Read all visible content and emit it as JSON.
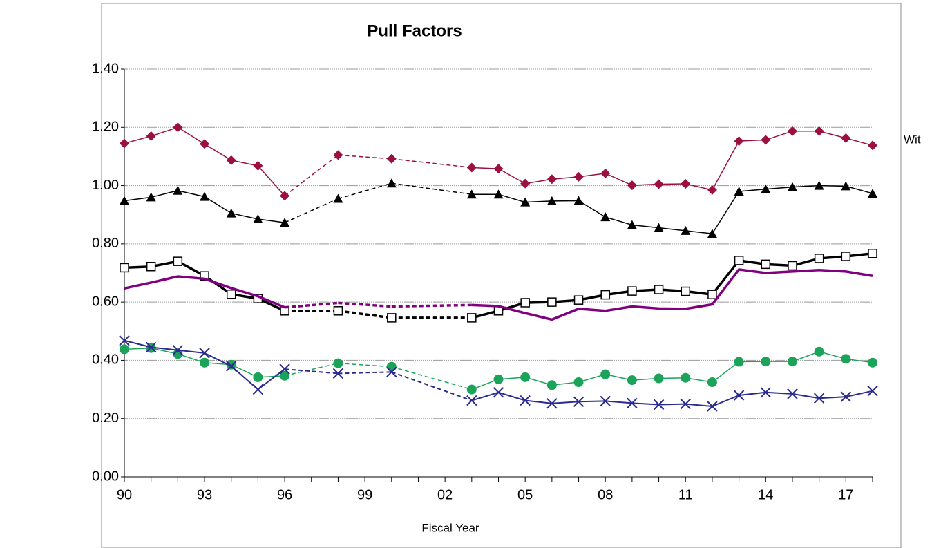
{
  "chart_data": {
    "type": "line",
    "title": "Pull Factors",
    "x_label": "Fiscal Year",
    "annotation": "Wit",
    "categories": [
      "90",
      null,
      null,
      "93",
      null,
      null,
      "96",
      null,
      null,
      "99",
      null,
      null,
      "02",
      null,
      null,
      "05",
      null,
      null,
      "08",
      null,
      null,
      "11",
      null,
      null,
      "14",
      null,
      null,
      "17",
      null
    ],
    "ylim": [
      0,
      1.4
    ],
    "yticks": [
      {
        "value": 0,
        "label": "0.00"
      },
      {
        "value": 0.2,
        "label": "0.20"
      },
      {
        "value": 0.4,
        "label": "0.40"
      },
      {
        "value": 0.6,
        "label": "0.60"
      },
      {
        "value": 0.8,
        "label": "0.80"
      },
      {
        "value": 1.0,
        "label": "1.00"
      },
      {
        "value": 1.2,
        "label": "1.20"
      },
      {
        "value": 1.4,
        "label": "1.40"
      }
    ],
    "grid": true,
    "series": [
      {
        "color": "#9b1040",
        "marker": "diamond",
        "width": 1.5,
        "values": [
          1.145,
          1.17,
          1.2,
          1.143,
          1.087,
          1.068,
          0.965,
          null,
          1.105,
          null,
          1.092,
          null,
          null,
          1.062,
          1.058,
          1.007,
          1.022,
          1.03,
          1.042,
          1.001,
          1.005,
          1.006,
          0.985,
          1.153,
          1.157,
          1.187,
          1.187,
          1.163,
          1.138
        ]
      },
      {
        "color": "#000000",
        "marker": "triangle",
        "width": 1.5,
        "values": [
          0.948,
          0.96,
          0.983,
          0.962,
          0.905,
          0.885,
          0.873,
          null,
          0.955,
          null,
          1.008,
          null,
          null,
          0.97,
          0.97,
          0.943,
          0.947,
          0.948,
          0.892,
          0.865,
          0.855,
          0.845,
          0.835,
          0.98,
          0.988,
          0.995,
          1.0,
          0.998,
          0.973
        ]
      },
      {
        "color": "#000000",
        "marker": "square",
        "width": 3.5,
        "values": [
          0.718,
          0.722,
          0.74,
          0.69,
          0.627,
          0.612,
          0.57,
          null,
          0.57,
          null,
          0.546,
          null,
          null,
          0.546,
          0.57,
          0.598,
          0.6,
          0.607,
          0.625,
          0.638,
          0.643,
          0.637,
          0.626,
          0.743,
          0.73,
          0.725,
          0.75,
          0.757,
          0.767
        ]
      },
      {
        "color": "#800080",
        "marker": "none",
        "width": 3.5,
        "values": [
          0.647,
          0.667,
          0.688,
          0.68,
          0.648,
          0.62,
          0.582,
          null,
          0.597,
          null,
          0.585,
          null,
          null,
          0.59,
          0.586,
          0.562,
          0.54,
          0.577,
          0.57,
          0.585,
          0.578,
          0.577,
          0.592,
          0.712,
          0.7,
          0.705,
          0.71,
          0.705,
          0.69
        ]
      },
      {
        "color": "#1ba35a",
        "marker": "circle",
        "width": 1.5,
        "values": [
          0.438,
          0.442,
          0.422,
          0.392,
          0.385,
          0.342,
          0.347,
          null,
          0.39,
          null,
          0.378,
          null,
          null,
          0.3,
          0.335,
          0.342,
          0.315,
          0.325,
          0.352,
          0.332,
          0.338,
          0.34,
          0.325,
          0.395,
          0.396,
          0.396,
          0.43,
          0.405,
          0.392
        ]
      },
      {
        "color": "#2b2b8f",
        "marker": "x",
        "width": 2,
        "values": [
          0.468,
          0.445,
          0.435,
          0.425,
          0.38,
          0.3,
          0.37,
          null,
          0.355,
          null,
          0.36,
          null,
          null,
          0.262,
          0.29,
          0.262,
          0.252,
          0.258,
          0.26,
          0.253,
          0.248,
          0.25,
          0.242,
          0.28,
          0.29,
          0.285,
          0.27,
          0.275,
          0.295
        ]
      }
    ]
  }
}
